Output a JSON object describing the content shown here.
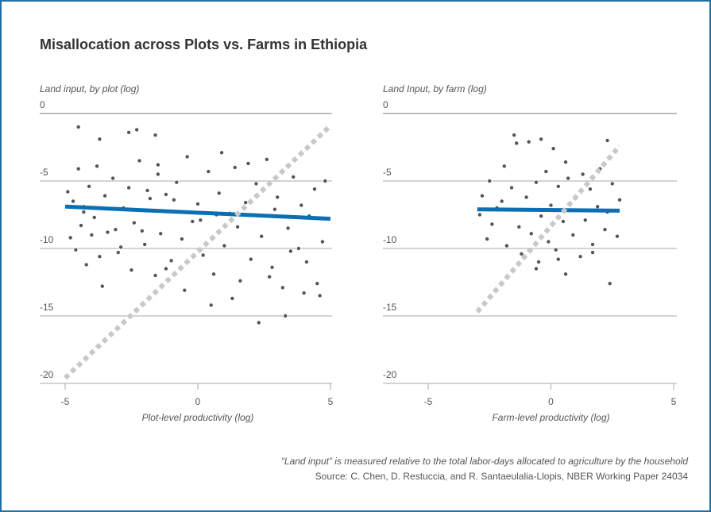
{
  "title": "Misallocation across Plots vs. Farms in Ethiopia",
  "footnote": "“Land input” is measured relative to the total labor-days allocated to agriculture by the household",
  "source": "Source: C. Chen, D. Restuccia, and R. Santaeulalia-Llopis, NBER Working Paper 24034",
  "chart_data": [
    {
      "type": "scatter",
      "y_label": "Land input, by plot (log)",
      "x_label": "Plot-level productivity (log)",
      "xlim": [
        -5,
        5
      ],
      "ylim": [
        -20,
        0
      ],
      "xticks": [
        -5,
        0,
        5
      ],
      "yticks": [
        0,
        -5,
        -10,
        -15,
        -20
      ],
      "grid": true,
      "series": [
        {
          "type": "scatter",
          "color": "#555555",
          "x": [
            -4.9,
            -4.8,
            -4.7,
            -4.6,
            -4.5,
            -4.4,
            -4.3,
            -4.2,
            -4.1,
            -4.0,
            -3.9,
            -3.8,
            -3.7,
            -3.6,
            -3.5,
            -3.4,
            -3.2,
            -3.0,
            -2.8,
            -2.6,
            -2.5,
            -2.4,
            -2.2,
            -2.0,
            -1.8,
            -1.6,
            -1.5,
            -1.4,
            -1.2,
            -1.0,
            -0.8,
            -0.6,
            -0.4,
            -0.2,
            0.0,
            0.2,
            0.4,
            0.6,
            0.8,
            1.0,
            1.2,
            1.3,
            1.4,
            1.6,
            1.8,
            2.0,
            2.2,
            2.3,
            2.4,
            2.6,
            2.8,
            3.0,
            3.2,
            3.3,
            3.4,
            3.6,
            3.8,
            4.0,
            4.2,
            4.4,
            4.5,
            4.6,
            4.7,
            4.8,
            -4.5,
            -3.7,
            -2.6,
            -2.3,
            -1.6,
            -1.5,
            -3.6,
            -1.2,
            0.9,
            1.9,
            -0.5,
            0.5,
            -2.9,
            2.7,
            3.9,
            -4.3,
            -3.1,
            -1.9,
            0.1,
            1.5,
            2.9,
            4.1,
            -0.9,
            0.7,
            3.5,
            -2.1
          ],
          "values": [
            -5.8,
            -9.2,
            -6.5,
            -10.1,
            -4.1,
            -8.3,
            -6.9,
            -11.2,
            -5.4,
            -9.0,
            -7.7,
            -3.9,
            -10.6,
            -12.8,
            -6.1,
            -8.8,
            -4.8,
            -10.3,
            -7.0,
            -5.5,
            -11.6,
            -8.1,
            -3.5,
            -9.7,
            -6.3,
            -12.0,
            -4.5,
            -8.9,
            -6.0,
            -10.9,
            -5.1,
            -9.3,
            -3.2,
            -8.0,
            -6.7,
            -10.5,
            -4.3,
            -11.9,
            -5.9,
            -9.8,
            -7.4,
            -13.7,
            -4.0,
            -12.4,
            -6.6,
            -10.8,
            -5.2,
            -15.5,
            -9.1,
            -3.4,
            -11.4,
            -6.2,
            -12.9,
            -15.0,
            -8.5,
            -4.7,
            -10.0,
            -13.3,
            -7.6,
            -5.6,
            -12.6,
            -13.5,
            -9.5,
            -5.0,
            -1.0,
            -1.9,
            -1.4,
            -1.2,
            -1.6,
            -3.8,
            -12.8,
            -11.5,
            -2.9,
            -3.7,
            -13.1,
            -14.2,
            -9.9,
            -12.1,
            -6.8,
            -7.3,
            -8.6,
            -5.7,
            -7.9,
            -8.4,
            -7.1,
            -11.0,
            -6.4,
            -7.5,
            -10.2,
            -8.7
          ]
        },
        {
          "type": "line",
          "color": "#0b6fb3",
          "x": [
            -5,
            5
          ],
          "values": [
            -6.9,
            -7.8
          ]
        },
        {
          "type": "line",
          "color": "#c8c8c8",
          "dash": true,
          "x": [
            -5,
            5
          ],
          "values": [
            -19.6,
            -0.9
          ]
        }
      ]
    },
    {
      "type": "scatter",
      "y_label": "Land Input, by farm (log)",
      "x_label": "Farm-level productivity (log)",
      "xlim": [
        -5,
        5
      ],
      "ylim": [
        -20,
        0
      ],
      "xticks": [
        -5,
        0,
        5
      ],
      "yticks": [
        0,
        -5,
        -10,
        -15,
        -20
      ],
      "grid": true,
      "series": [
        {
          "type": "scatter",
          "color": "#555555",
          "x": [
            -2.9,
            -2.8,
            -2.6,
            -2.5,
            -2.4,
            -2.2,
            -2.0,
            -1.9,
            -1.8,
            -1.6,
            -1.5,
            -1.3,
            -1.2,
            -1.0,
            -0.9,
            -0.8,
            -0.6,
            -0.5,
            -0.4,
            -0.2,
            -0.1,
            0.0,
            0.1,
            0.2,
            0.3,
            0.5,
            0.6,
            0.7,
            0.9,
            1.0,
            1.2,
            1.3,
            1.4,
            1.6,
            1.7,
            1.9,
            2.0,
            2.2,
            2.3,
            2.4,
            2.5,
            2.7,
            2.8,
            -1.4,
            -0.4,
            0.3,
            1.7,
            2.3,
            -0.6,
            0.6
          ],
          "values": [
            -7.5,
            -6.1,
            -9.3,
            -5.0,
            -8.2,
            -7.0,
            -6.5,
            -3.9,
            -9.8,
            -5.5,
            -1.6,
            -8.4,
            -10.4,
            -6.2,
            -2.1,
            -8.9,
            -5.1,
            -11.0,
            -7.6,
            -4.3,
            -9.5,
            -6.8,
            -2.6,
            -10.1,
            -5.4,
            -8.0,
            -11.9,
            -4.8,
            -9.0,
            -6.3,
            -10.6,
            -4.5,
            -7.9,
            -5.6,
            -9.7,
            -6.9,
            -4.1,
            -8.6,
            -7.3,
            -12.6,
            -5.2,
            -9.1,
            -6.4,
            -2.2,
            -1.9,
            -10.8,
            -10.3,
            -2.0,
            -11.5,
            -3.6
          ]
        },
        {
          "type": "line",
          "color": "#0b6fb3",
          "x": [
            -3,
            2.8
          ],
          "values": [
            -7.1,
            -7.2
          ]
        },
        {
          "type": "line",
          "color": "#c8c8c8",
          "dash": true,
          "x": [
            -3,
            2.8
          ],
          "values": [
            -14.7,
            -2.4
          ]
        }
      ]
    }
  ]
}
